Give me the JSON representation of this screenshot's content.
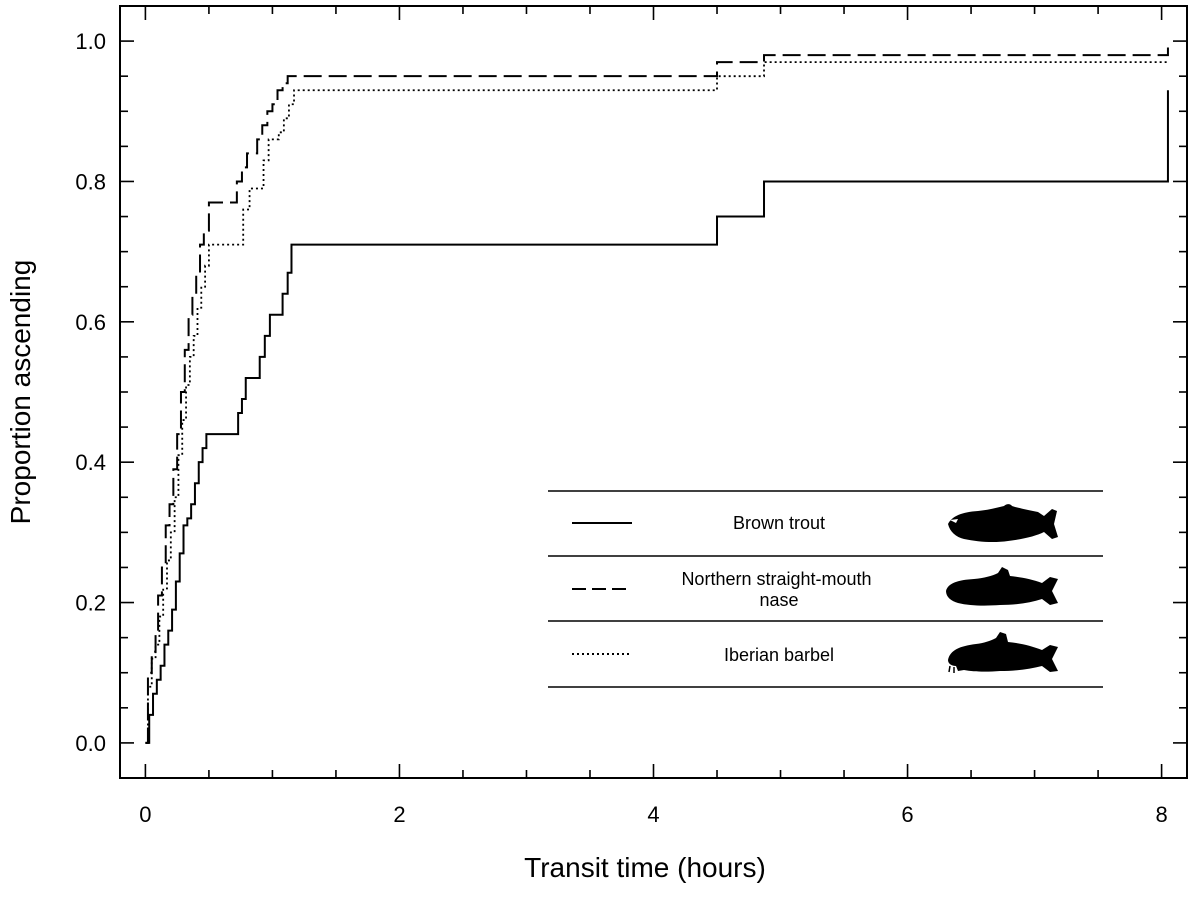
{
  "chart_data": {
    "type": "line",
    "step": true,
    "xlabel": "Transit time (hours)",
    "ylabel": "Proportion ascending",
    "xlim": [
      -0.2,
      8.2
    ],
    "ylim": [
      -0.05,
      1.05
    ],
    "xticks": [
      0,
      2,
      4,
      6,
      8
    ],
    "xtick_labels": [
      "0",
      "2",
      "4",
      "6",
      "8"
    ],
    "yticks": [
      0.0,
      0.2,
      0.4,
      0.6,
      0.8,
      1.0
    ],
    "ytick_labels": [
      "0.0",
      "0.2",
      "0.4",
      "0.6",
      "0.8",
      "1.0"
    ],
    "grid": false,
    "legend_position": "center-right",
    "series": [
      {
        "name": "Brown trout",
        "style": "solid",
        "x": [
          0,
          0.03,
          0.06,
          0.09,
          0.12,
          0.15,
          0.18,
          0.21,
          0.24,
          0.27,
          0.3,
          0.33,
          0.36,
          0.39,
          0.42,
          0.45,
          0.48,
          0.73,
          0.76,
          0.79,
          0.82,
          0.9,
          0.94,
          0.98,
          1.02,
          1.08,
          1.12,
          1.15,
          4.5,
          4.87,
          8.05,
          8.05
        ],
        "y": [
          0,
          0.04,
          0.07,
          0.09,
          0.11,
          0.14,
          0.16,
          0.19,
          0.23,
          0.27,
          0.31,
          0.32,
          0.34,
          0.37,
          0.4,
          0.42,
          0.44,
          0.47,
          0.49,
          0.52,
          0.52,
          0.55,
          0.58,
          0.61,
          0.61,
          0.64,
          0.67,
          0.71,
          0.75,
          0.8,
          0.8,
          0.93
        ]
      },
      {
        "name": "Northern straight-mouth nase",
        "style": "dashed",
        "x": [
          0,
          0.02,
          0.05,
          0.08,
          0.1,
          0.13,
          0.16,
          0.19,
          0.22,
          0.25,
          0.28,
          0.31,
          0.34,
          0.37,
          0.4,
          0.43,
          0.46,
          0.5,
          0.72,
          0.76,
          0.8,
          0.88,
          0.92,
          0.96,
          1.0,
          1.04,
          1.08,
          1.12,
          1.15,
          4.5,
          4.87,
          8.05,
          8.05
        ],
        "y": [
          0,
          0.1,
          0.13,
          0.16,
          0.21,
          0.25,
          0.31,
          0.34,
          0.39,
          0.44,
          0.5,
          0.56,
          0.61,
          0.64,
          0.67,
          0.71,
          0.73,
          0.77,
          0.8,
          0.82,
          0.84,
          0.86,
          0.88,
          0.9,
          0.91,
          0.93,
          0.94,
          0.95,
          0.95,
          0.97,
          0.98,
          0.98,
          1.0
        ]
      },
      {
        "name": "Iberian barbel",
        "style": "dotted",
        "x": [
          0,
          0.02,
          0.05,
          0.08,
          0.11,
          0.14,
          0.17,
          0.2,
          0.23,
          0.26,
          0.29,
          0.32,
          0.35,
          0.38,
          0.41,
          0.44,
          0.47,
          0.5,
          0.73,
          0.77,
          0.82,
          0.88,
          0.93,
          0.97,
          1.01,
          1.05,
          1.09,
          1.13,
          1.17,
          4.5,
          4.87,
          8.05,
          8.05
        ],
        "y": [
          0,
          0.08,
          0.12,
          0.14,
          0.18,
          0.22,
          0.26,
          0.3,
          0.35,
          0.41,
          0.46,
          0.51,
          0.55,
          0.58,
          0.62,
          0.65,
          0.68,
          0.71,
          0.71,
          0.76,
          0.79,
          0.79,
          0.83,
          0.86,
          0.86,
          0.87,
          0.89,
          0.91,
          0.93,
          0.95,
          0.97,
          0.97,
          0.97
        ]
      }
    ]
  }
}
